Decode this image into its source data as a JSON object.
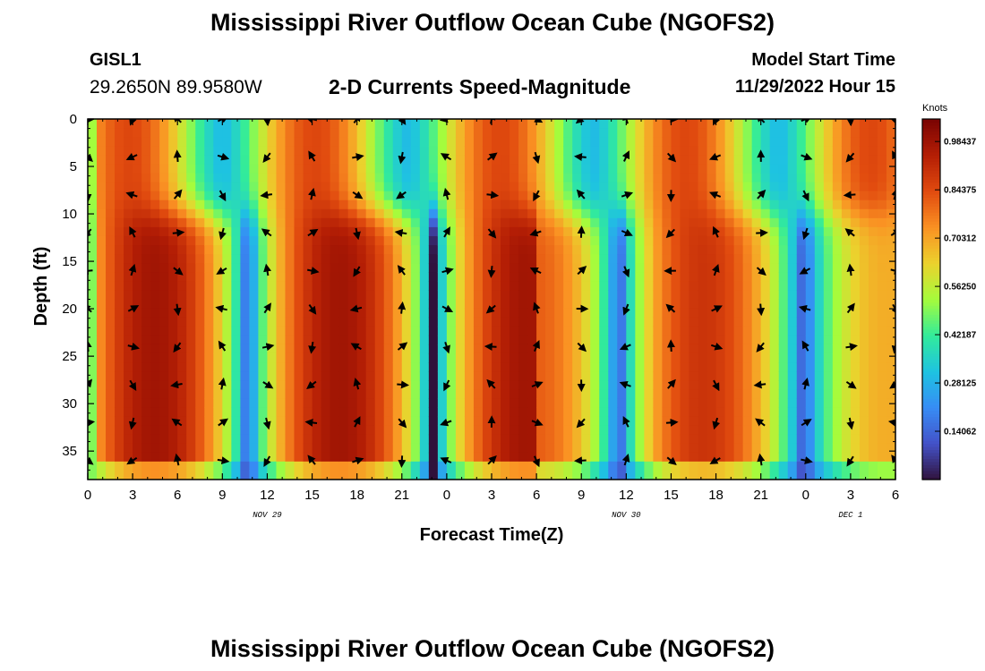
{
  "page": {
    "title": "Mississippi River Outflow Ocean Cube (NGOFS2)",
    "title_repeat": "Mississippi River Outflow Ocean Cube (NGOFS2)"
  },
  "station": {
    "id": "GISL1",
    "coords": "29.2650N  89.9580W"
  },
  "model": {
    "label": "Model Start Time",
    "start": "11/29/2022 Hour 15"
  },
  "chart_data": {
    "type": "heatmap",
    "title": "2-D Currents Speed-Magnitude",
    "xlabel": "Forecast Time(Z)",
    "ylabel": "Depth (ft)",
    "x_range_hours": [
      0,
      54
    ],
    "y_range_ft": [
      0,
      38
    ],
    "x_tick_labels": [
      "0",
      "3",
      "6",
      "9",
      "12",
      "15",
      "18",
      "21",
      "0",
      "3",
      "6",
      "9",
      "12",
      "15",
      "18",
      "21",
      "0",
      "3",
      "6"
    ],
    "y_ticks": [
      0,
      5,
      10,
      15,
      20,
      25,
      30,
      35
    ],
    "date_labels": [
      {
        "text": "NOV 29",
        "hour": 12
      },
      {
        "text": "NOV 30",
        "hour": 36
      },
      {
        "text": "DEC 1",
        "hour": 51
      }
    ],
    "colorbar": {
      "label": "Knots",
      "range": [
        0,
        1.05
      ],
      "tick_labels": [
        "0.98437",
        "0.84375",
        "0.70312",
        "0.56250",
        "0.42187",
        "0.28125",
        "0.14062"
      ],
      "tick_values": [
        0.98437,
        0.84375,
        0.70312,
        0.5625,
        0.42187,
        0.28125,
        0.14062
      ]
    },
    "grid": false
  },
  "colors": {
    "background": "#ffffff",
    "axis": "#000000"
  }
}
